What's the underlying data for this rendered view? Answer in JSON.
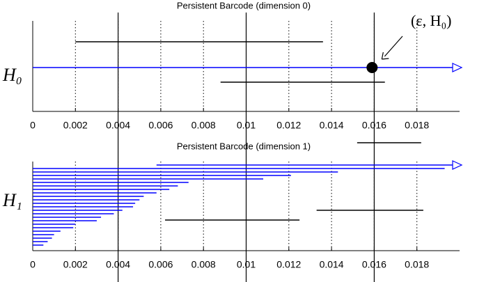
{
  "chart_data": [
    {
      "type": "barcode",
      "title": "Persistent Barcode (dimension 0)",
      "ylabel": "H₀",
      "annotation": "(ε, H₀)",
      "xlim": [
        0,
        0.02
      ],
      "xticks": [
        0,
        0.002,
        0.004,
        0.006,
        0.008,
        0.01,
        0.012,
        0.014,
        0.016,
        0.018
      ],
      "grid": true,
      "vlines": [
        0.004,
        0.01,
        0.016
      ],
      "point": 0.0159,
      "bars": [
        {
          "birth": 0.002,
          "death": 0.0136,
          "color": "#000000"
        },
        {
          "birth": 0,
          "death": null,
          "color": "#0000ff"
        },
        {
          "birth": 0.0088,
          "death": 0.0165,
          "color": "#000000"
        },
        {
          "birth": 0.0152,
          "death": 0.0182,
          "color": "#000000"
        }
      ]
    },
    {
      "type": "barcode",
      "title": "Persistent Barcode (dimension 1)",
      "ylabel": "H₁",
      "xlim": [
        0,
        0.02
      ],
      "xticks": [
        0,
        0.002,
        0.004,
        0.006,
        0.008,
        0.01,
        0.012,
        0.014,
        0.016,
        0.018
      ],
      "grid": true,
      "vlines": [
        0.004,
        0.01,
        0.016
      ],
      "bars": [
        {
          "birth": 0.0058,
          "death": null,
          "color": "#0000ff"
        },
        {
          "birth": 0,
          "death": 0.0193,
          "color": "#0000ff"
        },
        {
          "birth": 0,
          "death": 0.0143,
          "color": "#0000ff"
        },
        {
          "birth": 0,
          "death": 0.0121,
          "color": "#0000ff"
        },
        {
          "birth": 0,
          "death": 0.0108,
          "color": "#0000ff"
        },
        {
          "birth": 0,
          "death": 0.0073,
          "color": "#0000ff"
        },
        {
          "birth": 0,
          "death": 0.0068,
          "color": "#0000ff"
        },
        {
          "birth": 0,
          "death": 0.0064,
          "color": "#0000ff"
        },
        {
          "birth": 0,
          "death": 0.0058,
          "color": "#0000ff"
        },
        {
          "birth": 0,
          "death": 0.0052,
          "color": "#0000ff"
        },
        {
          "birth": 0,
          "death": 0.005,
          "color": "#0000ff"
        },
        {
          "birth": 0,
          "death": 0.0048,
          "color": "#0000ff"
        },
        {
          "birth": 0,
          "death": 0.0047,
          "color": "#0000ff"
        },
        {
          "birth": 0,
          "death": 0.0042,
          "color": "#0000ff"
        },
        {
          "birth": 0,
          "death": 0.0038,
          "color": "#0000ff"
        },
        {
          "birth": 0,
          "death": 0.0032,
          "color": "#0000ff"
        },
        {
          "birth": 0,
          "death": 0.003,
          "color": "#0000ff"
        },
        {
          "birth": 0,
          "death": 0.002,
          "color": "#0000ff"
        },
        {
          "birth": 0,
          "death": 0.0019,
          "color": "#0000ff"
        },
        {
          "birth": 0,
          "death": 0.0013,
          "color": "#0000ff"
        },
        {
          "birth": 0,
          "death": 0.001,
          "color": "#0000ff"
        },
        {
          "birth": 0,
          "death": 0.0009,
          "color": "#0000ff"
        },
        {
          "birth": 0,
          "death": 0.0007,
          "color": "#0000ff"
        },
        {
          "birth": 0,
          "death": 0.0005,
          "color": "#0000ff"
        },
        {
          "birth": 0.0133,
          "death": 0.0183,
          "color": "#000000"
        },
        {
          "birth": 0.0062,
          "death": 0.0125,
          "color": "#000000"
        }
      ]
    }
  ]
}
